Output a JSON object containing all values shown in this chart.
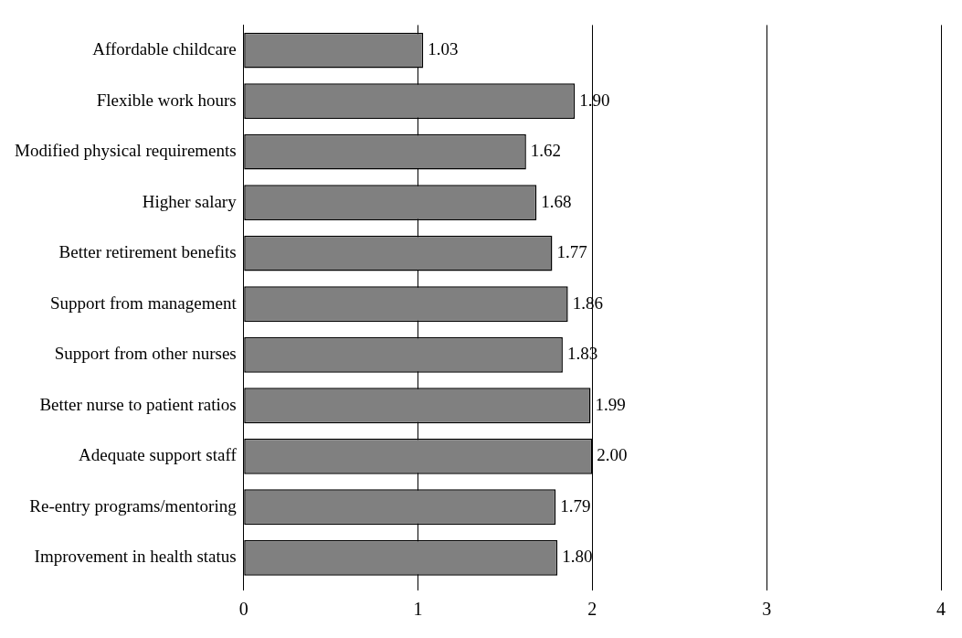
{
  "chart_data": {
    "type": "bar",
    "orientation": "horizontal",
    "categories": [
      "Affordable childcare",
      "Flexible work hours",
      "Modified physical requirements",
      "Higher salary",
      "Better retirement benefits",
      "Support from management",
      "Support from other nurses",
      "Better nurse to patient ratios",
      "Adequate support staff",
      "Re-entry programs/mentoring",
      "Improvement in health status"
    ],
    "values": [
      1.03,
      1.9,
      1.62,
      1.68,
      1.77,
      1.86,
      1.83,
      1.99,
      2.0,
      1.79,
      1.8
    ],
    "value_labels": [
      "1.03",
      "1.90",
      "1.62",
      "1.68",
      "1.77",
      "1.86",
      "1.83",
      "1.99",
      "2.00",
      "1.79",
      "1.80"
    ],
    "color": "#808080",
    "xlim": [
      0,
      4
    ],
    "xticks": [
      0,
      1,
      2,
      3,
      4
    ],
    "grid": "x",
    "legend": false
  }
}
